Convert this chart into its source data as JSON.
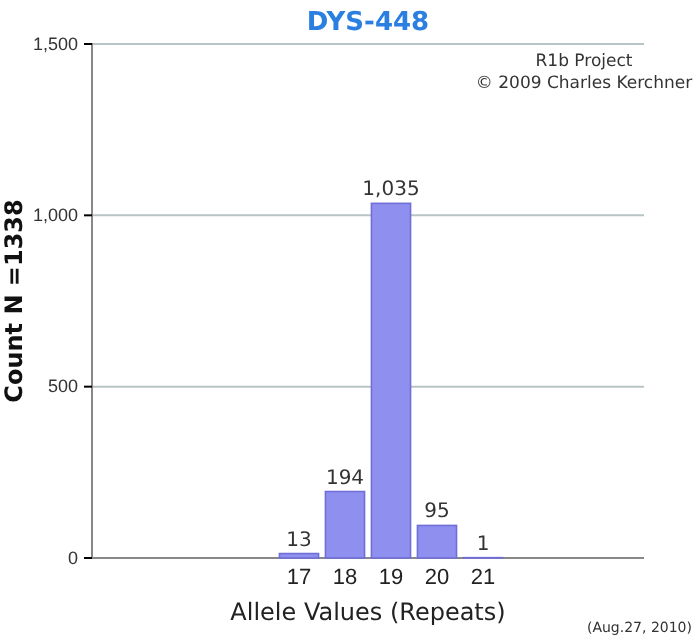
{
  "chart_data": {
    "type": "bar",
    "title": "DYS-448",
    "xlabel": "Allele Values (Repeats)",
    "ylabel": "Count N =1338",
    "categories": [
      null,
      null,
      null,
      null,
      "17",
      "18",
      "19",
      "20",
      "21",
      null,
      null,
      null
    ],
    "values": [
      null,
      null,
      null,
      null,
      13,
      194,
      1035,
      95,
      1,
      null,
      null,
      null
    ],
    "value_labels": [
      null,
      null,
      null,
      null,
      "13",
      "194",
      "1,035",
      "95",
      "1",
      null,
      null,
      null
    ],
    "color": "#8f8ff0",
    "ylim": [
      0,
      1500
    ],
    "yticks": [
      0,
      500,
      {
        "value": 1000,
        "label": "1,000"
      },
      {
        "value": 1500,
        "label": "1,500"
      }
    ],
    "grid": "y",
    "annotations": [
      "R1b Project",
      "© 2009 Charles Kerchner",
      "(Aug.27, 2010)"
    ]
  }
}
